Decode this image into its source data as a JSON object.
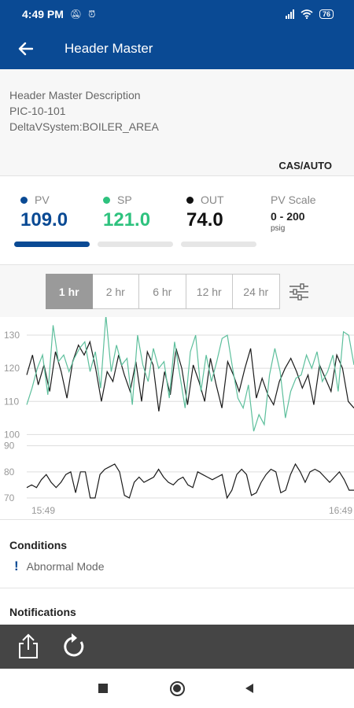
{
  "status_bar": {
    "time": "4:49 PM",
    "battery": "76"
  },
  "app_bar": {
    "title": "Header Master"
  },
  "description": {
    "line1": "Header Master Description",
    "line2": "PIC-10-101",
    "line3": "DeltaVSystem:BOILER_AREA"
  },
  "mode": "CAS/AUTO",
  "values": {
    "pv": {
      "label": "PV",
      "value": "109.0",
      "color": "#0a4a94"
    },
    "sp": {
      "label": "SP",
      "value": "121.0",
      "color": "#2ec27e"
    },
    "out": {
      "label": "OUT",
      "value": "74.0",
      "color": "#111111"
    },
    "scale": {
      "label": "PV Scale",
      "range": "0 - 200",
      "unit": "psig"
    }
  },
  "time_ranges": [
    {
      "label": "1 hr",
      "selected": true
    },
    {
      "label": "2 hr",
      "selected": false
    },
    {
      "label": "6 hr",
      "selected": false
    },
    {
      "label": "12 hr",
      "selected": false
    },
    {
      "label": "24 hr",
      "selected": false
    }
  ],
  "chart_data": [
    {
      "type": "line",
      "yticks": [
        "130",
        "120",
        "110",
        "100"
      ],
      "ylim": [
        97,
        135
      ],
      "grid": true,
      "series": [
        {
          "color": "#1b1b1b",
          "values": [
            118,
            124,
            115,
            121,
            113,
            125,
            119,
            111,
            122,
            127,
            124,
            128,
            120,
            110,
            119,
            116,
            124,
            118,
            113,
            122,
            110,
            125,
            121,
            107,
            119,
            112,
            126,
            120,
            109,
            121,
            116,
            110,
            123,
            115,
            108,
            122,
            118,
            113,
            120,
            126,
            111,
            117,
            112,
            109,
            116,
            120,
            123,
            119,
            114,
            118,
            109,
            121,
            117,
            113,
            124,
            120,
            110,
            108
          ]
        },
        {
          "color": "#5dbf9c",
          "values": [
            109,
            114,
            120,
            124,
            112,
            133,
            122,
            124,
            119,
            123,
            126,
            128,
            119,
            125,
            114,
            136,
            119,
            127,
            121,
            123,
            109,
            130,
            121,
            116,
            126,
            120,
            122,
            111,
            128,
            118,
            108,
            125,
            130,
            113,
            124,
            116,
            122,
            129,
            130,
            120,
            111,
            108,
            115,
            101,
            106,
            103,
            118,
            126,
            119,
            105,
            113,
            117,
            118,
            124,
            120,
            125,
            116,
            119,
            124,
            113,
            131,
            130,
            121
          ]
        }
      ]
    },
    {
      "type": "line",
      "yticks": [
        "90",
        "80",
        "70"
      ],
      "xticks": [
        "15:49",
        "16:49"
      ],
      "ylim": [
        67,
        92
      ],
      "grid": true,
      "series": [
        {
          "color": "#1b1b1b",
          "values": [
            74,
            75,
            74,
            77,
            79,
            76,
            74,
            76,
            79,
            80,
            72,
            80,
            80,
            70,
            70,
            79,
            81,
            82,
            83,
            80,
            71,
            70,
            76,
            78,
            76,
            77,
            78,
            81,
            78,
            76,
            75,
            77,
            78,
            75,
            74,
            80,
            79,
            78,
            77,
            78,
            79,
            70,
            73,
            79,
            81,
            79,
            71,
            72,
            76,
            79,
            81,
            80,
            72,
            73,
            79,
            83,
            80,
            76,
            80,
            81,
            80,
            78,
            76,
            78,
            80,
            77,
            73,
            73
          ]
        }
      ]
    }
  ],
  "conditions": {
    "title": "Conditions",
    "item": "Abnormal Mode"
  },
  "notifications": {
    "title": "Notifications"
  }
}
